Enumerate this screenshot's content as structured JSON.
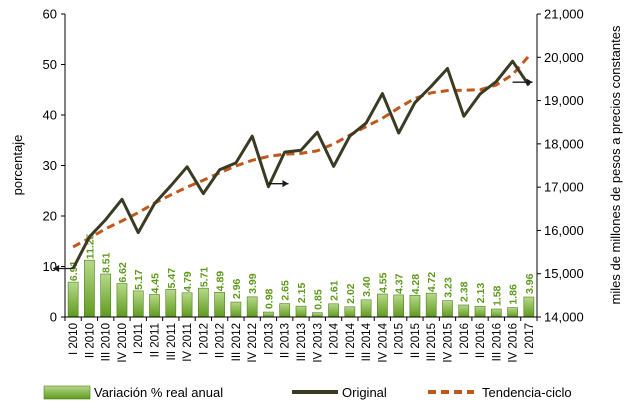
{
  "chart_data": {
    "type": "bar+line",
    "title": "",
    "categories": [
      "I 2010",
      "II 2010",
      "III 2010",
      "IV 2010",
      "I 2011",
      "II 2011",
      "III 2011",
      "IV 2011",
      "I 2012",
      "II 2012",
      "III 2012",
      "IV 2012",
      "I 2013",
      "II 2013",
      "III 2013",
      "IV 2013",
      "I 2014",
      "II 2014",
      "III 2014",
      "IV 2014",
      "I 2015",
      "II 2015",
      "III 2015",
      "IV 2015",
      "I 2016",
      "II 2016",
      "III 2016",
      "IV 2016",
      "I 2017"
    ],
    "bar_labels": [
      "6.91",
      "11.25",
      "8.51",
      "6.62",
      "5.17",
      "4.45",
      "5.47",
      "4.79",
      "5.71",
      "4.89",
      "2.96",
      "3.99",
      "0.98",
      "2.65",
      "2.15",
      "0.85",
      "2.61",
      "2.02",
      "3.40",
      "4.55",
      "4.37",
      "4.28",
      "4.72",
      "3.23",
      "2.38",
      "2.13",
      "1.58",
      "1.86",
      "3.96"
    ],
    "series": [
      {
        "name": "Variación % real anual",
        "type": "bar",
        "axis": "left",
        "color": "#7fb52a",
        "values": [
          6.91,
          11.25,
          8.51,
          6.62,
          5.17,
          4.45,
          5.47,
          4.79,
          5.71,
          4.89,
          2.96,
          3.99,
          0.98,
          2.65,
          2.15,
          0.85,
          2.61,
          2.02,
          3.4,
          4.55,
          4.37,
          4.28,
          4.72,
          3.23,
          2.38,
          2.13,
          1.58,
          1.86,
          3.96
        ]
      },
      {
        "name": "Original",
        "type": "line",
        "axis": "right",
        "color": "#3b3b23",
        "values": [
          15120,
          15850,
          16250,
          16720,
          15950,
          16620,
          17030,
          17470,
          16850,
          17400,
          17560,
          18180,
          17010,
          17810,
          17850,
          18270,
          17480,
          18180,
          18480,
          19160,
          18250,
          18950,
          19330,
          19740,
          18640,
          19150,
          19440,
          19910,
          19350
        ]
      },
      {
        "name": "Tendencia-ciclo",
        "type": "line",
        "axis": "right",
        "color": "#c0581b",
        "values": [
          15620,
          15820,
          16040,
          16220,
          16410,
          16630,
          16820,
          17000,
          17160,
          17330,
          17490,
          17620,
          17710,
          17760,
          17780,
          17840,
          18000,
          18200,
          18400,
          18590,
          18830,
          19050,
          19180,
          19230,
          19240,
          19250,
          19360,
          19600,
          20030
        ]
      }
    ],
    "y_left": {
      "label": "porcentaje",
      "min": 0,
      "max": 60,
      "ticks": [
        "0",
        "10",
        "20",
        "30",
        "40",
        "50",
        "60"
      ]
    },
    "y_right": {
      "label": "miles de millones de pesos a precios constantes",
      "min": 14000,
      "max": 21000,
      "ticks": [
        "14,000",
        "15,000",
        "16,000",
        "17,000",
        "18,000",
        "19,000",
        "20,000",
        "21,000"
      ]
    },
    "legend_position": "bottom",
    "arrows": [
      {
        "category_index": 0,
        "direction": "left",
        "axis": "left",
        "value": 9.6
      },
      {
        "category_index": 12,
        "direction": "right",
        "axis": "left",
        "value": 26.4
      },
      {
        "category_index": 27,
        "direction": "right",
        "axis": "left",
        "value": 46.5
      }
    ]
  }
}
